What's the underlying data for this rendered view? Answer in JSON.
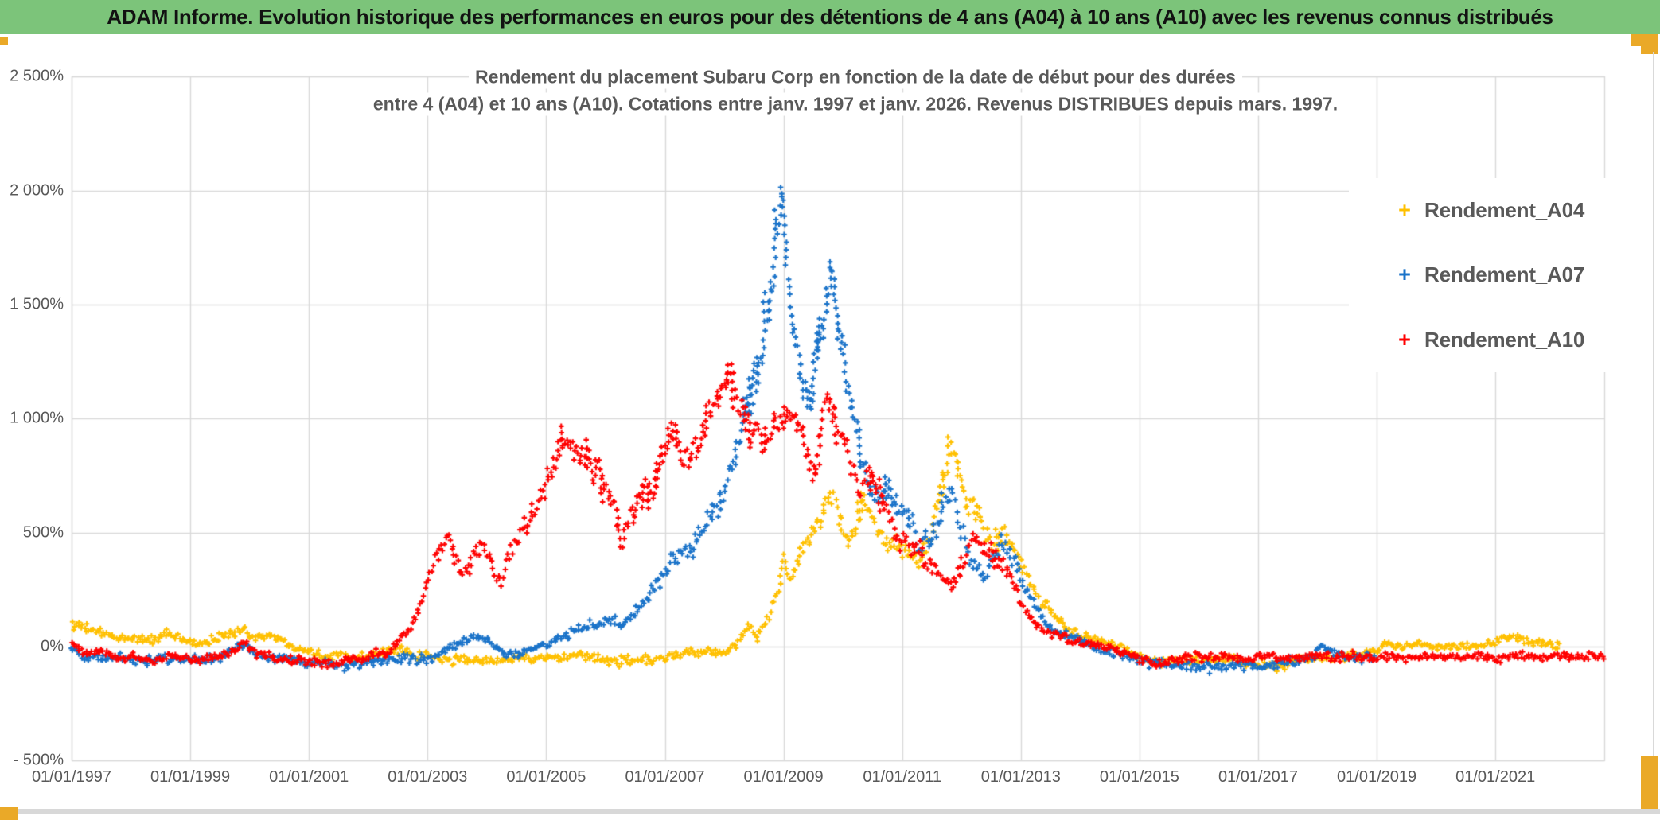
{
  "banner": {
    "title": "ADAM Informe. Evolution historique des performances en euros pour des détentions de 4 ans (A04) à 10 ans (A10) avec les revenus connus distribués",
    "background": "#7CC47A",
    "text_color": "#121212"
  },
  "colors": {
    "gold_accent": "#EAA928",
    "gridline": "#D9D9D9",
    "axis_text": "#595959",
    "bottom_strip": "#D8D8D8"
  },
  "chart": {
    "title_line1": "Rendement du placement Subaru Corp en fonction de la date de début pour des durées",
    "title_line2": "entre 4 (A04) et 10 ans (A10). Cotations entre janv. 1997 et janv. 2026. Revenus DISTRIBUES depuis mars. 1997."
  },
  "chart_data": {
    "type": "scatter",
    "title": "Rendement du placement Subaru Corp en fonction de la date de début pour des durées entre 4 (A04) et 10 ans (A10). Cotations entre janv. 1997 et janv. 2026. Revenus DISTRIBUES depuis mars. 1997.",
    "marker": "plus",
    "grid": true,
    "legend_position": "right",
    "x_axis": {
      "tick_labels": [
        "01/01/1997",
        "01/01/1999",
        "01/01/2001",
        "01/01/2003",
        "01/01/2005",
        "01/01/2007",
        "01/01/2009",
        "01/01/2011",
        "01/01/2013",
        "01/01/2015",
        "01/01/2017",
        "01/01/2019",
        "01/01/2021"
      ],
      "start_year": 1997,
      "end_year": 2022.84,
      "tick_interval_years": 2
    },
    "y_axis": {
      "tick_labels": [
        "2 500%",
        "2 000%",
        "1 500%",
        "1 000%",
        "500%",
        "0%",
        "- 500%"
      ],
      "tick_values": [
        2500,
        2000,
        1500,
        1000,
        500,
        0,
        -500
      ],
      "unit": "%",
      "ylim": [
        -500,
        2500
      ]
    },
    "legend": [
      {
        "name": "Rendement_A04",
        "color": "#FFC000"
      },
      {
        "name": "Rendement_A07",
        "color": "#1A73C9"
      },
      {
        "name": "Rendement_A10",
        "color": "#FF0000"
      }
    ],
    "series": [
      {
        "name": "Rendement_A04",
        "color": "#FFC000",
        "anchors": [
          [
            1997.0,
            110
          ],
          [
            1997.2,
            80
          ],
          [
            1997.45,
            60
          ],
          [
            1997.7,
            45
          ],
          [
            1998.0,
            35
          ],
          [
            1998.3,
            30
          ],
          [
            1998.6,
            52
          ],
          [
            1998.9,
            25
          ],
          [
            1999.2,
            15
          ],
          [
            1999.5,
            40
          ],
          [
            1999.75,
            62
          ],
          [
            1999.9,
            82
          ],
          [
            2000.1,
            35
          ],
          [
            2000.35,
            52
          ],
          [
            2000.6,
            20
          ],
          [
            2000.9,
            -15
          ],
          [
            2001.3,
            -35
          ],
          [
            2001.7,
            -48
          ],
          [
            2002.0,
            -35
          ],
          [
            2002.3,
            -25
          ],
          [
            2002.55,
            -15
          ],
          [
            2002.8,
            -40
          ],
          [
            2003.1,
            -52
          ],
          [
            2003.5,
            -58
          ],
          [
            2003.9,
            -62
          ],
          [
            2004.3,
            -55
          ],
          [
            2004.7,
            -48
          ],
          [
            2005.1,
            -55
          ],
          [
            2005.5,
            -42
          ],
          [
            2005.9,
            -55
          ],
          [
            2006.3,
            -62
          ],
          [
            2006.7,
            -55
          ],
          [
            2007.0,
            -50
          ],
          [
            2007.35,
            -32
          ],
          [
            2007.7,
            -22
          ],
          [
            2008.0,
            -28
          ],
          [
            2008.2,
            10
          ],
          [
            2008.42,
            90
          ],
          [
            2008.55,
            30
          ],
          [
            2008.7,
            100
          ],
          [
            2008.85,
            220
          ],
          [
            2009.0,
            380
          ],
          [
            2009.15,
            300
          ],
          [
            2009.3,
            380
          ],
          [
            2009.5,
            500
          ],
          [
            2009.65,
            610
          ],
          [
            2009.8,
            700
          ],
          [
            2009.95,
            540
          ],
          [
            2010.1,
            430
          ],
          [
            2010.25,
            590
          ],
          [
            2010.4,
            650
          ],
          [
            2010.55,
            510
          ],
          [
            2010.7,
            430
          ],
          [
            2010.85,
            470
          ],
          [
            2011.0,
            440
          ],
          [
            2011.15,
            400
          ],
          [
            2011.3,
            360
          ],
          [
            2011.5,
            490
          ],
          [
            2011.65,
            680
          ],
          [
            2011.8,
            935
          ],
          [
            2011.95,
            760
          ],
          [
            2012.1,
            630
          ],
          [
            2012.3,
            580
          ],
          [
            2012.5,
            470
          ],
          [
            2012.7,
            480
          ],
          [
            2012.9,
            410
          ],
          [
            2013.1,
            310
          ],
          [
            2013.3,
            210
          ],
          [
            2013.55,
            130
          ],
          [
            2013.85,
            70
          ],
          [
            2014.2,
            35
          ],
          [
            2014.7,
            5
          ],
          [
            2015.0,
            -45
          ],
          [
            2015.4,
            -70
          ],
          [
            2015.8,
            -60
          ],
          [
            2016.2,
            -62
          ],
          [
            2016.6,
            -45
          ],
          [
            2016.9,
            -75
          ],
          [
            2017.1,
            -95
          ],
          [
            2017.4,
            -80
          ],
          [
            2017.7,
            -60
          ],
          [
            2018.0,
            -40
          ],
          [
            2018.4,
            -50
          ],
          [
            2018.8,
            -30
          ],
          [
            2019.0,
            -15
          ],
          [
            2019.2,
            15
          ],
          [
            2019.45,
            0
          ],
          [
            2019.7,
            10
          ],
          [
            2019.95,
            -5
          ],
          [
            2020.2,
            8
          ],
          [
            2020.5,
            0
          ],
          [
            2020.8,
            12
          ],
          [
            2021.0,
            25
          ],
          [
            2021.2,
            40
          ],
          [
            2021.45,
            30
          ],
          [
            2021.7,
            18
          ],
          [
            2021.95,
            8
          ],
          [
            2022.1,
            5
          ]
        ]
      },
      {
        "name": "Rendement_A07",
        "color": "#1A73C9",
        "anchors": [
          [
            1997.0,
            0
          ],
          [
            1997.2,
            -40
          ],
          [
            1997.5,
            -50
          ],
          [
            1998.0,
            -55
          ],
          [
            1998.4,
            -65
          ],
          [
            1998.8,
            -50
          ],
          [
            1999.2,
            -62
          ],
          [
            1999.6,
            -35
          ],
          [
            1999.9,
            15
          ],
          [
            2000.15,
            -40
          ],
          [
            2000.6,
            -60
          ],
          [
            2001.0,
            -70
          ],
          [
            2001.5,
            -78
          ],
          [
            2002.0,
            -65
          ],
          [
            2002.4,
            -50
          ],
          [
            2002.8,
            -55
          ],
          [
            2003.1,
            -45
          ],
          [
            2003.5,
            10
          ],
          [
            2003.8,
            45
          ],
          [
            2004.05,
            20
          ],
          [
            2004.3,
            -35
          ],
          [
            2004.6,
            -25
          ],
          [
            2004.85,
            -10
          ],
          [
            2005.1,
            20
          ],
          [
            2005.4,
            60
          ],
          [
            2005.7,
            90
          ],
          [
            2006.0,
            115
          ],
          [
            2006.3,
            100
          ],
          [
            2006.55,
            160
          ],
          [
            2006.8,
            250
          ],
          [
            2007.0,
            320
          ],
          [
            2007.2,
            400
          ],
          [
            2007.45,
            430
          ],
          [
            2007.65,
            500
          ],
          [
            2007.85,
            620
          ],
          [
            2008.0,
            700
          ],
          [
            2008.15,
            800
          ],
          [
            2008.3,
            950
          ],
          [
            2008.45,
            1100
          ],
          [
            2008.6,
            1300
          ],
          [
            2008.75,
            1500
          ],
          [
            2008.88,
            1800
          ],
          [
            2008.96,
            2010
          ],
          [
            2009.05,
            1650
          ],
          [
            2009.15,
            1380
          ],
          [
            2009.3,
            1180
          ],
          [
            2009.45,
            1120
          ],
          [
            2009.6,
            1300
          ],
          [
            2009.72,
            1500
          ],
          [
            2009.8,
            1650
          ],
          [
            2009.92,
            1400
          ],
          [
            2010.05,
            1150
          ],
          [
            2010.2,
            950
          ],
          [
            2010.35,
            800
          ],
          [
            2010.5,
            660
          ],
          [
            2010.65,
            680
          ],
          [
            2010.8,
            710
          ],
          [
            2010.95,
            640
          ],
          [
            2011.1,
            550
          ],
          [
            2011.3,
            430
          ],
          [
            2011.5,
            500
          ],
          [
            2011.7,
            620
          ],
          [
            2011.85,
            650
          ],
          [
            2012.0,
            520
          ],
          [
            2012.2,
            340
          ],
          [
            2012.4,
            310
          ],
          [
            2012.55,
            400
          ],
          [
            2012.7,
            460
          ],
          [
            2012.85,
            420
          ],
          [
            2013.0,
            300
          ],
          [
            2013.2,
            180
          ],
          [
            2013.45,
            100
          ],
          [
            2013.7,
            60
          ],
          [
            2014.0,
            25
          ],
          [
            2014.4,
            -15
          ],
          [
            2014.8,
            -45
          ],
          [
            2015.2,
            -70
          ],
          [
            2015.6,
            -85
          ],
          [
            2016.0,
            -95
          ],
          [
            2016.4,
            -80
          ],
          [
            2016.8,
            -88
          ],
          [
            2017.2,
            -82
          ],
          [
            2017.6,
            -70
          ],
          [
            2017.95,
            -35
          ],
          [
            2018.07,
            5
          ],
          [
            2018.25,
            -25
          ],
          [
            2018.5,
            -48
          ],
          [
            2018.8,
            -55
          ],
          [
            2019.0,
            -50
          ]
        ]
      },
      {
        "name": "Rendement_A10",
        "color": "#FF0000",
        "anchors": [
          [
            1997.0,
            15
          ],
          [
            1997.15,
            -15
          ],
          [
            1997.3,
            -35
          ],
          [
            1997.6,
            -30
          ],
          [
            1997.75,
            -50
          ],
          [
            1998.0,
            -45
          ],
          [
            1998.3,
            -60
          ],
          [
            1998.6,
            -40
          ],
          [
            1999.0,
            -62
          ],
          [
            1999.4,
            -45
          ],
          [
            1999.7,
            -25
          ],
          [
            1999.9,
            25
          ],
          [
            2000.1,
            -30
          ],
          [
            2000.5,
            -55
          ],
          [
            2000.9,
            -65
          ],
          [
            2001.4,
            -72
          ],
          [
            2001.9,
            -50
          ],
          [
            2002.15,
            -25
          ],
          [
            2002.3,
            -42
          ],
          [
            2002.5,
            15
          ],
          [
            2002.7,
            90
          ],
          [
            2002.9,
            200
          ],
          [
            2003.05,
            330
          ],
          [
            2003.25,
            450
          ],
          [
            2003.37,
            530
          ],
          [
            2003.5,
            380
          ],
          [
            2003.62,
            300
          ],
          [
            2003.8,
            420
          ],
          [
            2003.95,
            430
          ],
          [
            2004.1,
            360
          ],
          [
            2004.25,
            300
          ],
          [
            2004.4,
            420
          ],
          [
            2004.55,
            470
          ],
          [
            2004.7,
            560
          ],
          [
            2004.85,
            640
          ],
          [
            2005.0,
            720
          ],
          [
            2005.2,
            840
          ],
          [
            2005.42,
            925
          ],
          [
            2005.6,
            860
          ],
          [
            2005.75,
            790
          ],
          [
            2005.9,
            730
          ],
          [
            2006.1,
            620
          ],
          [
            2006.25,
            460
          ],
          [
            2006.4,
            560
          ],
          [
            2006.6,
            640
          ],
          [
            2006.8,
            700
          ],
          [
            2006.95,
            830
          ],
          [
            2007.1,
            990
          ],
          [
            2007.25,
            860
          ],
          [
            2007.4,
            800
          ],
          [
            2007.55,
            900
          ],
          [
            2007.7,
            1030
          ],
          [
            2007.85,
            1090
          ],
          [
            2008.05,
            1175
          ],
          [
            2008.2,
            1080
          ],
          [
            2008.35,
            1000
          ],
          [
            2008.5,
            950
          ],
          [
            2008.65,
            860
          ],
          [
            2008.8,
            900
          ],
          [
            2008.95,
            1000
          ],
          [
            2009.1,
            1080
          ],
          [
            2009.25,
            950
          ],
          [
            2009.4,
            820
          ],
          [
            2009.55,
            750
          ],
          [
            2009.7,
            1150
          ],
          [
            2009.85,
            1000
          ],
          [
            2010.0,
            880
          ],
          [
            2010.15,
            780
          ],
          [
            2010.3,
            700
          ],
          [
            2010.45,
            770
          ],
          [
            2010.6,
            680
          ],
          [
            2010.75,
            560
          ],
          [
            2010.9,
            460
          ],
          [
            2011.1,
            470
          ],
          [
            2011.3,
            420
          ],
          [
            2011.5,
            320
          ],
          [
            2011.7,
            290
          ],
          [
            2011.85,
            280
          ],
          [
            2012.0,
            350
          ],
          [
            2012.2,
            455
          ],
          [
            2012.4,
            430
          ],
          [
            2012.6,
            390
          ],
          [
            2012.8,
            310
          ],
          [
            2013.0,
            190
          ],
          [
            2013.2,
            110
          ],
          [
            2013.5,
            55
          ],
          [
            2013.9,
            25
          ],
          [
            2014.3,
            5
          ],
          [
            2014.8,
            -25
          ],
          [
            2015.0,
            -60
          ],
          [
            2015.3,
            -75
          ],
          [
            2015.6,
            -55
          ],
          [
            2015.9,
            -45
          ],
          [
            2016.3,
            -45
          ],
          [
            2017.0,
            -48
          ],
          [
            2018.0,
            -45
          ],
          [
            2019.0,
            -45
          ],
          [
            2020.0,
            -45
          ],
          [
            2021.0,
            -45
          ],
          [
            2022.0,
            -42
          ],
          [
            2022.84,
            -42
          ]
        ]
      }
    ]
  }
}
